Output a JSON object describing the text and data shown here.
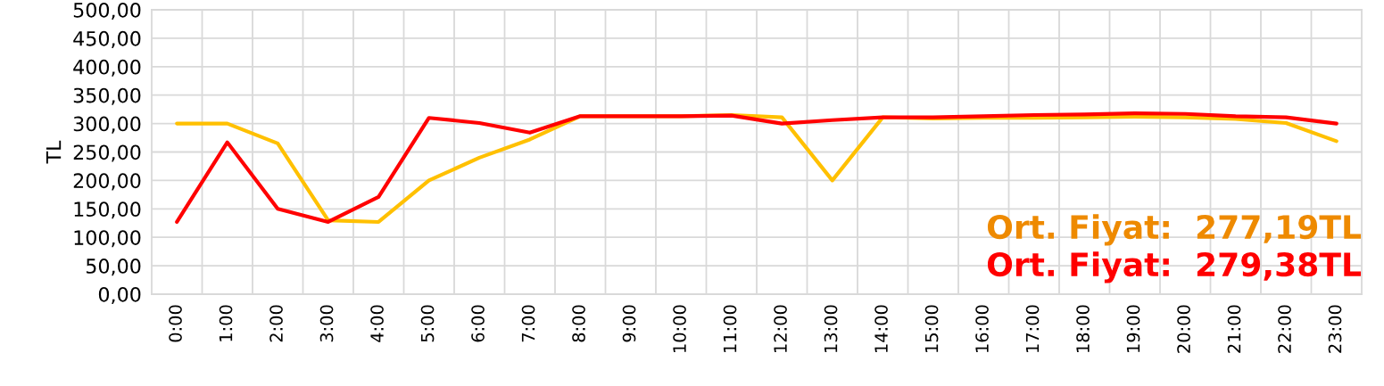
{
  "chart_data": {
    "type": "line",
    "ylabel": "TL",
    "categories": [
      "0:00",
      "1:00",
      "2:00",
      "3:00",
      "4:00",
      "5:00",
      "6:00",
      "7:00",
      "8:00",
      "9:00",
      "10:00",
      "11:00",
      "12:00",
      "13:00",
      "14:00",
      "15:00",
      "16:00",
      "17:00",
      "18:00",
      "19:00",
      "20:00",
      "21:00",
      "22:00",
      "23:00"
    ],
    "series": [
      {
        "color": "#ffc000",
        "values": [
          300,
          300,
          265,
          130,
          127,
          200,
          240,
          272,
          313,
          313,
          313,
          315,
          311,
          200,
          311,
          309,
          310,
          310,
          311,
          312,
          311,
          308,
          301,
          269
        ]
      },
      {
        "color": "#ff0000",
        "values": [
          127,
          267,
          150,
          127,
          171,
          310,
          301,
          284,
          313,
          313,
          313,
          314,
          300,
          306,
          311,
          311,
          313,
          315,
          316,
          318,
          317,
          313,
          311,
          300
        ]
      }
    ],
    "ylim": [
      0,
      500
    ],
    "yticks": [
      {
        "value": 0,
        "label": "0,00"
      },
      {
        "value": 50,
        "label": "50,00"
      },
      {
        "value": 100,
        "label": "100,00"
      },
      {
        "value": 150,
        "label": "150,00"
      },
      {
        "value": 200,
        "label": "200,00"
      },
      {
        "value": 250,
        "label": "250,00"
      },
      {
        "value": 300,
        "label": "300,00"
      },
      {
        "value": 350,
        "label": "350,00"
      },
      {
        "value": 400,
        "label": "400,00"
      },
      {
        "value": 450,
        "label": "450,00"
      },
      {
        "value": 500,
        "label": "500,00"
      }
    ],
    "grid": true,
    "annotations": [
      "Ort. Fiyat:  277,19TL",
      "Ort. Fiyat:  279,38TL"
    ]
  }
}
